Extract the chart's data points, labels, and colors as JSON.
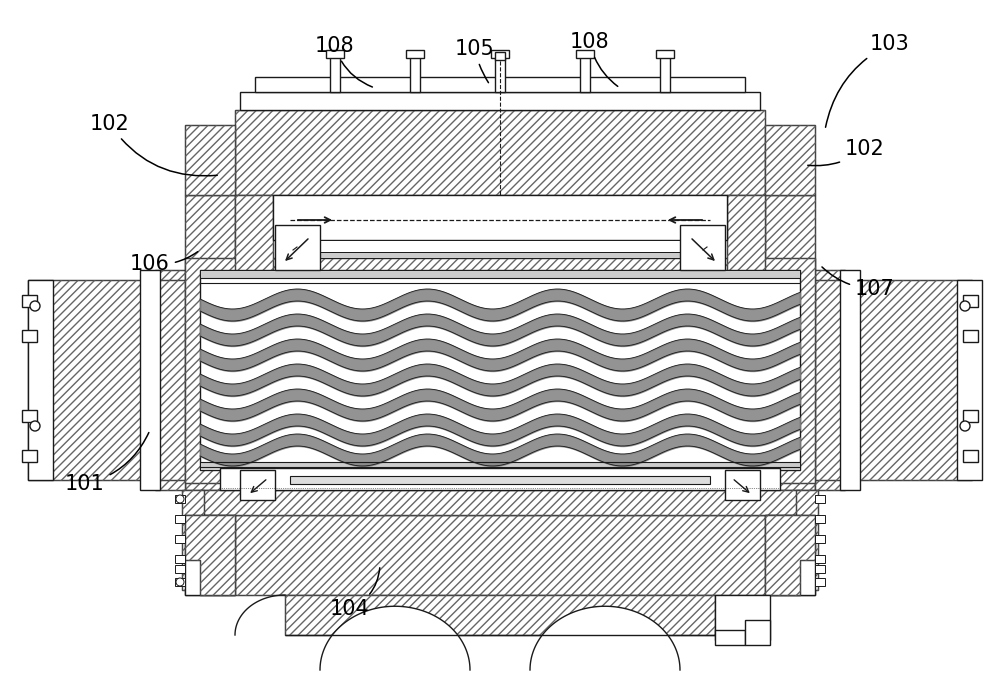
{
  "bg_color": "#ffffff",
  "line_color": "#1a1a1a",
  "fig_width": 10.0,
  "fig_height": 6.84,
  "label_fontsize": 15,
  "hatch_density": "////",
  "gray_fill": "#b0b0b0",
  "light_gray": "#d8d8d8",
  "wave_gray": "#909090"
}
